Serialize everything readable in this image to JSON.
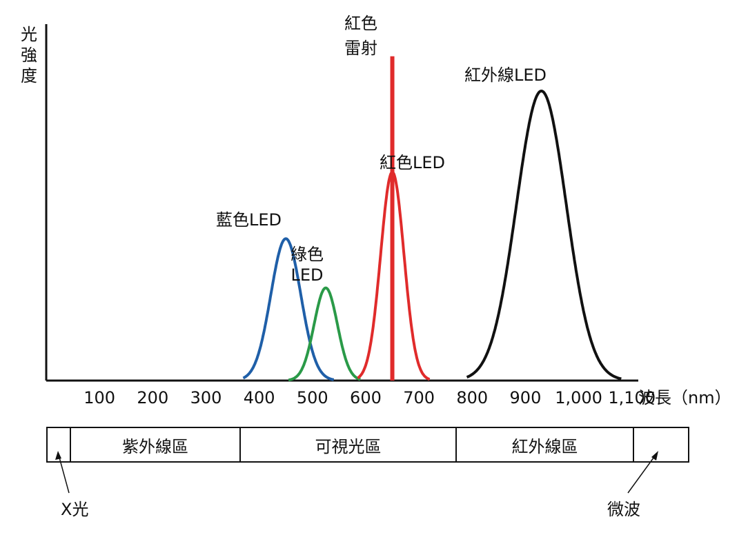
{
  "chart_data": {
    "type": "line",
    "xlabel": "波長（nm）",
    "ylabel": "光強度",
    "x_ticks": [
      "100",
      "200",
      "300",
      "400",
      "500",
      "600",
      "700",
      "800",
      "900",
      "1,000",
      "1,100"
    ],
    "xlim": [
      0,
      1200
    ],
    "grid": false,
    "series": [
      {
        "name": "藍色LED",
        "color": "#1f5fa8",
        "peak_x": 450,
        "peak_intensity": 0.49,
        "range": [
          370,
          540
        ]
      },
      {
        "name": "綠色LED",
        "color": "#2a9a48",
        "peak_x": 525,
        "peak_intensity": 0.32,
        "range": [
          455,
          590
        ]
      },
      {
        "name": "紅色LED",
        "color": "#e02b2b",
        "peak_x": 650,
        "peak_intensity": 0.72,
        "range": [
          585,
          720
        ]
      },
      {
        "name": "紅色雷射",
        "color": "#e02b2b",
        "peak_x": 650,
        "peak_intensity": 1.12,
        "range": [
          650,
          650
        ]
      },
      {
        "name": "紅外線LED",
        "color": "#111111",
        "peak_x": 930,
        "peak_intensity": 1.0,
        "range": [
          790,
          1080
        ]
      }
    ]
  },
  "labels": {
    "red_laser_line1": "紅色",
    "red_laser_line2": "雷射",
    "ir_led": "紅外線LED",
    "red_led": "紅色LED",
    "blue_led": "藍色LED",
    "green_led_line1": "綠色",
    "green_led_line2": "LED",
    "ylabel_1": "光",
    "ylabel_2": "強",
    "ylabel_3": "度",
    "xaxis_unit": "波長（nm）"
  },
  "regions": [
    "紫外線區",
    "可視光區",
    "紅外線區"
  ],
  "region_notes": {
    "xray": "X光",
    "microwave": "微波"
  }
}
